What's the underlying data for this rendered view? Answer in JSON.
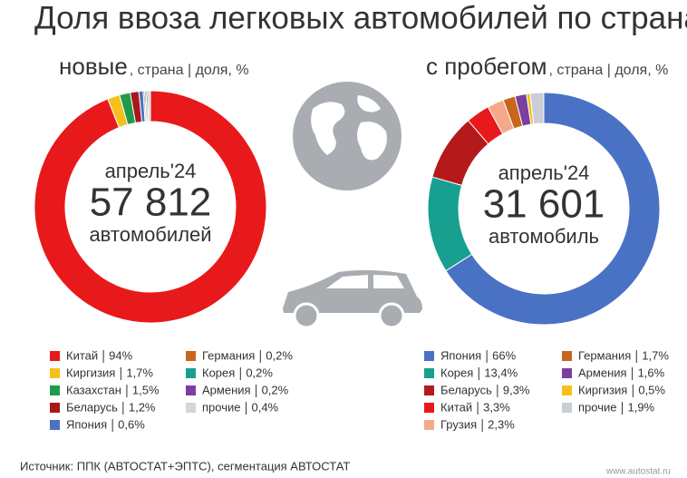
{
  "header": {
    "title": "Доля ввоза легковых автомобилей по странам"
  },
  "chart_data": [
    {
      "type": "pie",
      "title": "новые",
      "subtitle": ", страна | доля, %",
      "center_text": [
        "апрель'24",
        "57 812",
        "автомобилей"
      ],
      "categories": [
        "Китай",
        "Киргизия",
        "Казахстан",
        "Беларусь",
        "Япония",
        "Германия",
        "Корея",
        "Армения",
        "прочие"
      ],
      "values": [
        94,
        1.7,
        1.5,
        1.2,
        0.6,
        0.2,
        0.2,
        0.2,
        0.4
      ],
      "value_labels": [
        "94%",
        "1,7%",
        "1,5%",
        "1,2%",
        "0,6%",
        "0,2%",
        "0,2%",
        "0,2%",
        "0,4%"
      ],
      "colors": [
        "#e8191b",
        "#f5c01c",
        "#1f9b4a",
        "#a8181b",
        "#4a72c4",
        "#c8661b",
        "#17a08f",
        "#7a3fa0",
        "#d3d6da"
      ]
    },
    {
      "type": "pie",
      "title": "с пробегом",
      "subtitle": ", страна | доля, %",
      "center_text": [
        "апрель'24",
        "31 601",
        "автомобиль"
      ],
      "categories": [
        "Япония",
        "Корея",
        "Беларусь",
        "Китай",
        "Грузия",
        "Германия",
        "Армения",
        "Киргизия",
        "прочие"
      ],
      "values": [
        66,
        13.4,
        9.3,
        3.3,
        2.3,
        1.7,
        1.6,
        0.5,
        1.9
      ],
      "value_labels": [
        "66%",
        "13,4%",
        "9,3%",
        "3,3%",
        "2,3%",
        "1,7%",
        "1,6%",
        "0,5%",
        "1,9%"
      ],
      "colors": [
        "#4a72c4",
        "#17a08f",
        "#b5191b",
        "#e8191b",
        "#f4a98b",
        "#c8661b",
        "#7a3fa0",
        "#f5c01c",
        "#c9ced6"
      ]
    }
  ],
  "footer": {
    "source": "Источник: ППК (АВТОСТАТ+ЭПТС), сегментация АВТОСТАТ",
    "site": "www.autostat.ru"
  }
}
